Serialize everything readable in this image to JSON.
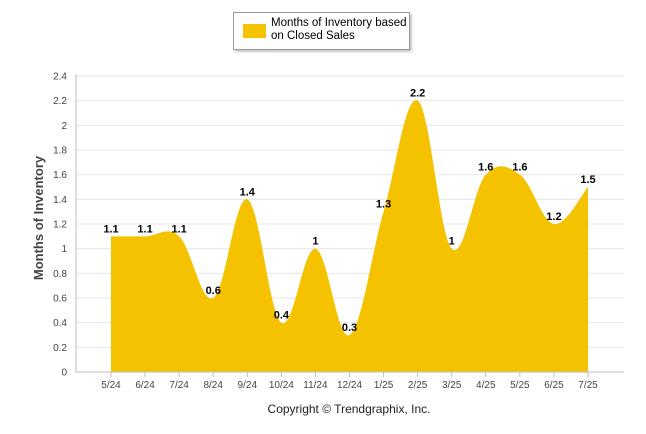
{
  "legend": {
    "label": "Months of Inventory based on Closed Sales",
    "color": "#F5C200"
  },
  "copyright": "Copyright © Trendgraphix, Inc.",
  "chart_data": {
    "type": "area",
    "categories": [
      "5/24",
      "6/24",
      "7/24",
      "8/24",
      "9/24",
      "10/24",
      "11/24",
      "12/24",
      "1/25",
      "2/25",
      "3/25",
      "4/25",
      "5/25",
      "6/25",
      "7/25"
    ],
    "series": [
      {
        "name": "Months of Inventory based on Closed Sales",
        "values": [
          1.1,
          1.1,
          1.1,
          0.6,
          1.4,
          0.4,
          1,
          0.3,
          1.3,
          2.2,
          1,
          1.6,
          1.6,
          1.2,
          1.5
        ],
        "labels": [
          "1.1",
          "1.1",
          "1.1",
          "0.6",
          "1.4",
          "0.4",
          "1",
          "0.3",
          "1.3",
          "2.2",
          "1",
          "1.6",
          "1.6",
          "1.2",
          "1.5"
        ]
      }
    ],
    "ylabel": "Months of Inventory",
    "xlabel": "",
    "ylim": [
      0,
      2.4
    ],
    "yticks": [
      "0",
      "0.2",
      "0.4",
      "0.6",
      "0.8",
      "1",
      "1.2",
      "1.4",
      "1.6",
      "1.8",
      "2",
      "2.2",
      "2.4"
    ],
    "grid": true,
    "legend_position": "top-center",
    "color": "#F5C200"
  }
}
